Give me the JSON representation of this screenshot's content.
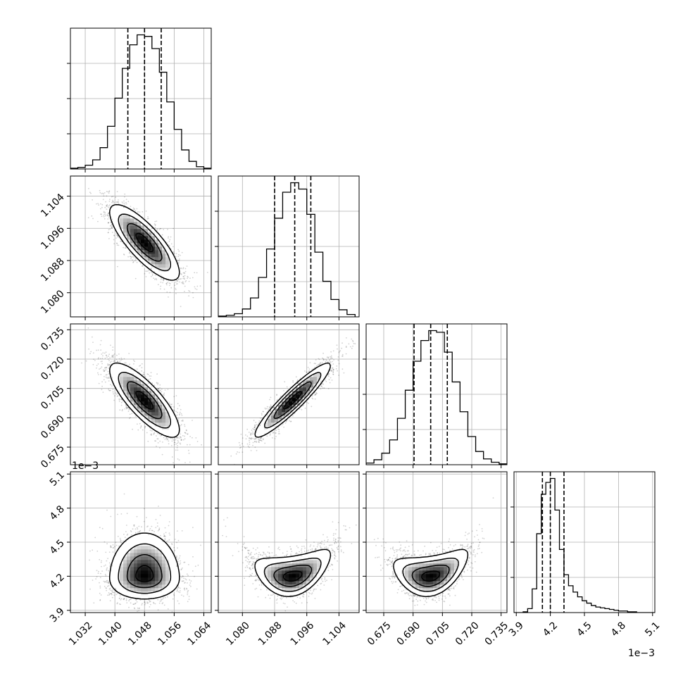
{
  "chart_data": {
    "type": "corner",
    "title": "",
    "grid": true,
    "parameters": [
      {
        "index": 0,
        "range": [
          1.028,
          1.066
        ],
        "ticks": [
          1.032,
          1.04,
          1.048,
          1.056,
          1.064
        ],
        "tick_labels": [
          "1.032",
          "1.040",
          "1.048",
          "1.056",
          "1.064"
        ],
        "offset": "",
        "quantiles": [
          1.0435,
          1.048,
          1.0525
        ],
        "center": 1.048,
        "sigma": 0.0047
      },
      {
        "index": 1,
        "range": [
          1.074,
          1.109
        ],
        "ticks": [
          1.08,
          1.088,
          1.096,
          1.104
        ],
        "tick_labels": [
          "1.080",
          "1.088",
          "1.096",
          "1.104"
        ],
        "offset": "",
        "quantiles": [
          1.088,
          1.093,
          1.097
        ],
        "center": 1.0925,
        "sigma": 0.0047
      },
      {
        "index": 2,
        "range": [
          0.666,
          0.738
        ],
        "ticks": [
          0.675,
          0.69,
          0.705,
          0.72,
          0.735
        ],
        "tick_labels": [
          "0.675",
          "0.690",
          "0.705",
          "0.720",
          "0.735"
        ],
        "offset": "",
        "quantiles": [
          0.6905,
          0.699,
          0.7075
        ],
        "center": 0.699,
        "sigma": 0.0095
      },
      {
        "index": 3,
        "range": [
          3.88,
          5.12
        ],
        "ticks": [
          3.9,
          4.2,
          4.5,
          4.8,
          5.1
        ],
        "tick_labels": [
          "3.9",
          "4.2",
          "4.5",
          "4.8",
          "5.1"
        ],
        "offset": "1e−3",
        "quantiles": [
          4.13,
          4.2,
          4.32
        ],
        "center": 4.2,
        "sigma": 0.1
      }
    ],
    "histograms": [
      {
        "param": 0,
        "bin_edges": [
          1.028,
          1.03,
          1.032,
          1.034,
          1.036,
          1.038,
          1.04,
          1.042,
          1.044,
          1.046,
          1.048,
          1.05,
          1.052,
          1.054,
          1.056,
          1.058,
          1.06,
          1.062,
          1.064,
          1.066
        ],
        "counts": [
          1,
          2,
          5,
          12,
          28,
          56,
          93,
          132,
          163,
          176,
          174,
          158,
          127,
          88,
          52,
          25,
          10,
          3,
          1
        ]
      },
      {
        "param": 1,
        "bin_edges": [
          1.074,
          1.076,
          1.078,
          1.08,
          1.082,
          1.084,
          1.086,
          1.088,
          1.09,
          1.092,
          1.094,
          1.096,
          1.098,
          1.1,
          1.102,
          1.104,
          1.106,
          1.108
        ],
        "counts": [
          1,
          2,
          4,
          10,
          24,
          50,
          86,
          125,
          158,
          170,
          162,
          130,
          82,
          45,
          22,
          9,
          3
        ]
      },
      {
        "param": 2,
        "bin_edges": [
          0.666,
          0.67,
          0.674,
          0.678,
          0.682,
          0.686,
          0.69,
          0.694,
          0.698,
          0.702,
          0.706,
          0.71,
          0.714,
          0.718,
          0.722,
          0.726,
          0.73,
          0.734,
          0.738
        ],
        "counts": [
          2,
          6,
          14,
          30,
          56,
          90,
          125,
          150,
          162,
          160,
          136,
          100,
          64,
          34,
          16,
          7,
          3,
          1
        ]
      },
      {
        "param": 3,
        "bin_edges": [
          3.88,
          3.92,
          3.96,
          4.0,
          4.04,
          4.08,
          4.12,
          4.16,
          4.2,
          4.24,
          4.28,
          4.32,
          4.36,
          4.4,
          4.44,
          4.48,
          4.52,
          4.56,
          4.6,
          4.64,
          4.68,
          4.72,
          4.76,
          4.8,
          4.84,
          4.88,
          4.92,
          4.96,
          5.0,
          5.04,
          5.08,
          5.12
        ],
        "counts": [
          0,
          0,
          1,
          5,
          30,
          100,
          150,
          165,
          170,
          130,
          80,
          48,
          34,
          26,
          20,
          15,
          12,
          9,
          7,
          6,
          5,
          4,
          3,
          2,
          2,
          1,
          1,
          0,
          0,
          0,
          0
        ]
      }
    ],
    "pairs": [
      {
        "x_param": 0,
        "y_param": 1,
        "correlation": -0.8
      },
      {
        "x_param": 0,
        "y_param": 2,
        "correlation": -0.8
      },
      {
        "x_param": 1,
        "y_param": 2,
        "correlation": 0.93
      },
      {
        "x_param": 0,
        "y_param": 3,
        "correlation": 0.0,
        "shape": "skewed-up"
      },
      {
        "x_param": 1,
        "y_param": 3,
        "correlation": 0.0,
        "shape": "curved-up"
      },
      {
        "x_param": 2,
        "y_param": 3,
        "correlation": 0.0,
        "shape": "curved-up"
      }
    ],
    "contour_levels": [
      "0.5-sigma",
      "1-sigma",
      "1.5-sigma",
      "2-sigma"
    ],
    "colors": {
      "line": "#000000",
      "grid": "#b0b0b0",
      "points": "#000000"
    }
  }
}
